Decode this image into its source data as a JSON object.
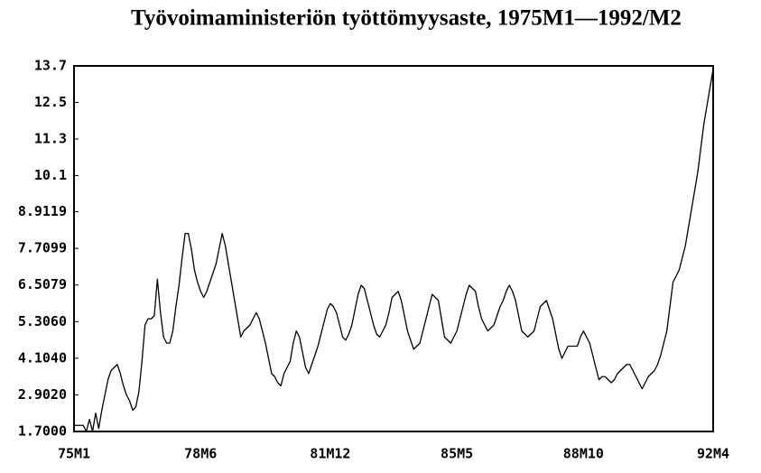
{
  "chart_data": {
    "type": "line",
    "title": "Työvoimaministeriön työttömyysaste, 1975M1—1992/M2",
    "categories": [
      "75M1",
      null,
      null,
      null,
      null,
      null,
      null,
      null,
      null,
      null,
      null,
      null,
      null,
      null,
      null,
      null,
      null,
      null,
      null,
      null,
      null,
      null,
      null,
      null,
      null,
      null,
      null,
      null,
      null,
      null,
      null,
      null,
      null,
      null,
      null,
      null,
      null,
      null,
      null,
      null,
      null,
      "78M6",
      null,
      null,
      null,
      null,
      null,
      null,
      null,
      null,
      null,
      null,
      null,
      null,
      null,
      null,
      null,
      null,
      null,
      null,
      null,
      null,
      null,
      null,
      null,
      null,
      null,
      null,
      null,
      null,
      null,
      null,
      null,
      null,
      null,
      null,
      null,
      null,
      null,
      null,
      null,
      null,
      null,
      "81M12",
      null,
      null,
      null,
      null,
      null,
      null,
      null,
      null,
      null,
      null,
      null,
      null,
      null,
      null,
      null,
      null,
      null,
      null,
      null,
      null,
      null,
      null,
      null,
      null,
      null,
      null,
      null,
      null,
      null,
      null,
      null,
      null,
      null,
      null,
      null,
      null,
      null,
      null,
      null,
      null,
      "85M5",
      null,
      null,
      null,
      null,
      null,
      null,
      null,
      null,
      null,
      null,
      null,
      null,
      null,
      null,
      null,
      null,
      null,
      null,
      null,
      null,
      null,
      null,
      null,
      null,
      null,
      null,
      null,
      null,
      null,
      null,
      null,
      null,
      null,
      null,
      null,
      null,
      null,
      null,
      null,
      null,
      "88M10",
      null,
      null,
      null,
      null,
      null,
      null,
      null,
      null,
      null,
      null,
      null,
      null,
      null,
      null,
      null,
      null,
      null,
      null,
      null,
      null,
      null,
      null,
      null,
      null,
      null,
      null,
      null,
      null,
      null,
      null,
      null,
      null,
      null,
      null,
      null,
      null,
      null,
      null,
      null,
      null,
      null,
      "92M4"
    ],
    "series": [
      {
        "color": "#000000",
        "values": [
          1.9,
          1.9,
          1.9,
          1.9,
          1.7,
          2.1,
          1.7,
          2.3,
          1.8,
          2.4,
          2.9,
          3.4,
          3.7,
          3.8,
          3.9,
          3.6,
          3.2,
          2.9,
          2.7,
          2.4,
          2.5,
          3.0,
          4.0,
          5.2,
          5.4,
          5.4,
          5.5,
          6.7,
          5.6,
          4.8,
          4.6,
          4.6,
          5.0,
          5.8,
          6.5,
          7.4,
          8.2,
          8.2,
          7.7,
          7.0,
          6.6,
          6.3,
          6.1,
          6.3,
          6.6,
          6.9,
          7.2,
          7.7,
          8.2,
          7.8,
          7.2,
          6.6,
          6.0,
          5.4,
          4.8,
          5.0,
          5.1,
          5.2,
          5.4,
          5.6,
          5.4,
          5.0,
          4.6,
          4.1,
          3.6,
          3.5,
          3.3,
          3.2,
          3.6,
          3.8,
          4.0,
          4.6,
          5.0,
          4.8,
          4.3,
          3.8,
          3.6,
          3.9,
          4.2,
          4.5,
          4.9,
          5.3,
          5.7,
          5.9,
          5.8,
          5.6,
          5.2,
          4.8,
          4.7,
          4.9,
          5.2,
          5.7,
          6.2,
          6.5,
          6.4,
          6.0,
          5.6,
          5.2,
          4.9,
          4.8,
          5.0,
          5.2,
          5.6,
          6.1,
          6.2,
          6.3,
          6.0,
          5.5,
          5.0,
          4.7,
          4.4,
          4.5,
          4.6,
          5.0,
          5.4,
          5.8,
          6.2,
          6.1,
          6.0,
          5.4,
          4.8,
          4.7,
          4.6,
          4.8,
          5.0,
          5.4,
          5.8,
          6.2,
          6.5,
          6.4,
          6.3,
          5.8,
          5.4,
          5.2,
          5.0,
          5.1,
          5.2,
          5.5,
          5.8,
          6.0,
          6.3,
          6.5,
          6.3,
          6.0,
          5.5,
          5.0,
          4.9,
          4.8,
          4.9,
          5.0,
          5.4,
          5.8,
          5.9,
          6.0,
          5.7,
          5.4,
          4.9,
          4.4,
          4.1,
          4.3,
          4.5,
          4.5,
          4.5,
          4.5,
          4.8,
          5.0,
          4.8,
          4.6,
          4.2,
          3.8,
          3.4,
          3.5,
          3.5,
          3.4,
          3.3,
          3.4,
          3.6,
          3.7,
          3.8,
          3.9,
          3.9,
          3.7,
          3.5,
          3.3,
          3.1,
          3.3,
          3.5,
          3.6,
          3.7,
          3.9,
          4.2,
          4.6,
          5.0,
          5.8,
          6.6,
          6.8,
          7.0,
          7.4,
          7.8,
          8.4,
          9.0,
          9.6,
          10.2,
          11.0,
          11.8,
          12.4,
          13.0,
          13.6
        ]
      }
    ],
    "ylim": [
      1.7,
      13.7
    ],
    "yticks": [
      {
        "value": 1.7,
        "label": "1.7000"
      },
      {
        "value": 2.902,
        "label": "2.9020"
      },
      {
        "value": 4.104,
        "label": "4.1040"
      },
      {
        "value": 5.306,
        "label": "5.3060"
      },
      6.5079,
      7.7099,
      8.9119,
      10.1,
      11.3,
      12.5,
      13.7
    ]
  }
}
